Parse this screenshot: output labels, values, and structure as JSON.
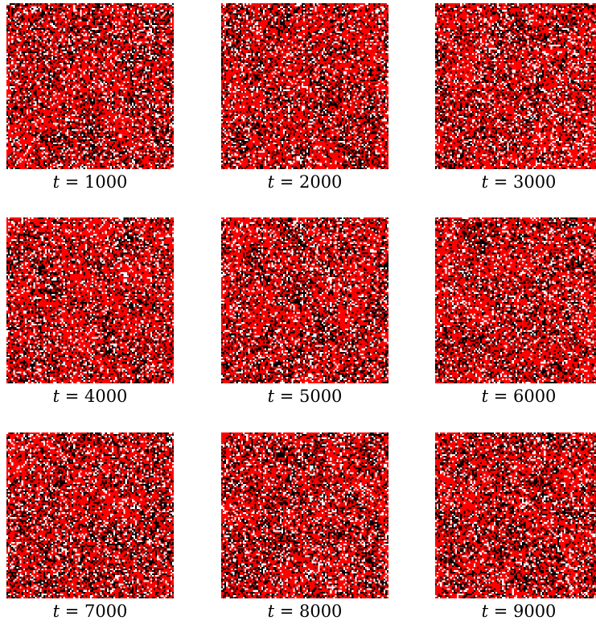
{
  "palette": {
    "red": "#ff0000",
    "black": "#000000",
    "white": "#ffffff"
  },
  "lattice": {
    "size": 100,
    "state_weights": {
      "red": 0.58,
      "black": 0.27,
      "white": 0.15
    }
  },
  "panels": [
    {
      "var": "t",
      "equals": " = ",
      "value": "1000"
    },
    {
      "var": "t",
      "equals": " = ",
      "value": "2000"
    },
    {
      "var": "t",
      "equals": " = ",
      "value": "3000"
    },
    {
      "var": "t",
      "equals": " = ",
      "value": "4000"
    },
    {
      "var": "t",
      "equals": " = ",
      "value": "5000"
    },
    {
      "var": "t",
      "equals": " = ",
      "value": "6000"
    },
    {
      "var": "t",
      "equals": " = ",
      "value": "7000"
    },
    {
      "var": "t",
      "equals": " = ",
      "value": "8000"
    },
    {
      "var": "t",
      "equals": " = ",
      "value": "9000"
    }
  ]
}
